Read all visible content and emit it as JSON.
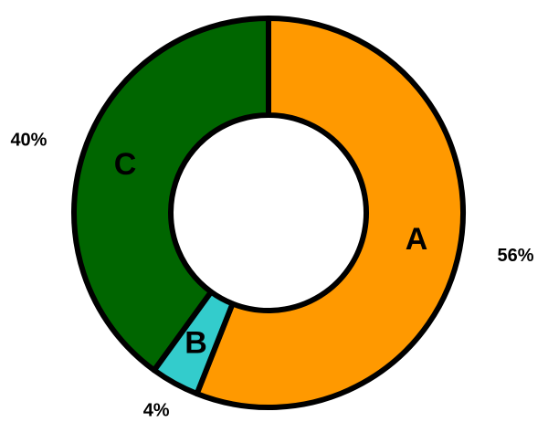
{
  "chart_data": {
    "type": "donut",
    "categories": [
      "A",
      "B",
      "C"
    ],
    "values": [
      56,
      4,
      40
    ],
    "value_labels": [
      "56%",
      "4%",
      "40%"
    ],
    "colors": [
      "#ff9900",
      "#33cccc",
      "#006600"
    ]
  }
}
